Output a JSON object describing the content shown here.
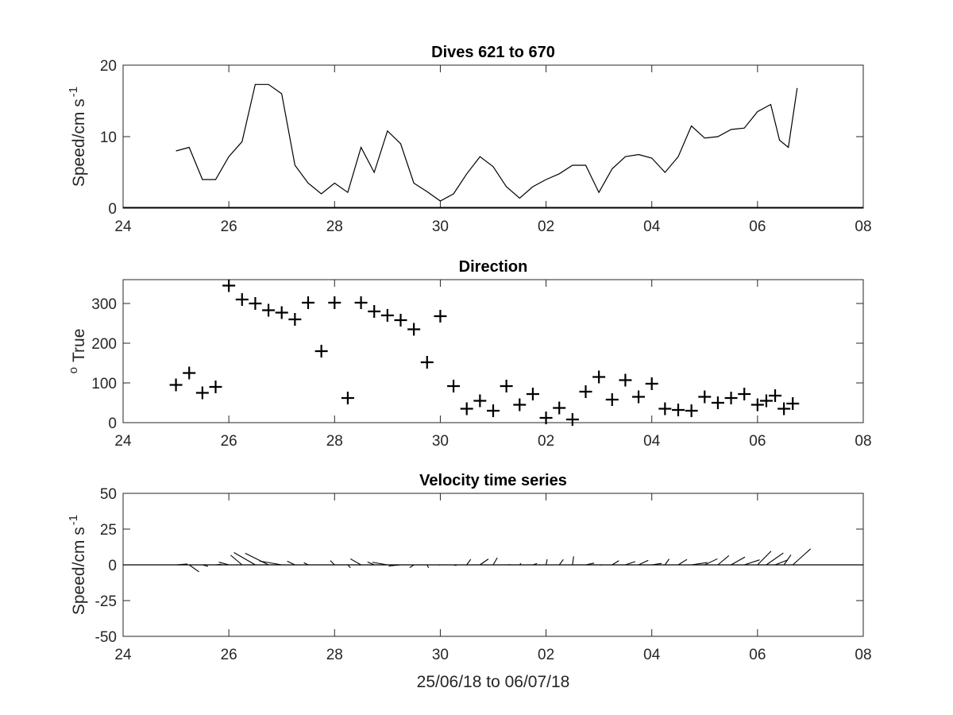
{
  "chart_data": [
    {
      "type": "line",
      "title": "Dives 621 to 670",
      "ylabel": "Speed/cm s",
      "ylabel_sup": "-1",
      "xlabel": "",
      "xlim": [
        "2018-06-24",
        "2018-07-08"
      ],
      "ylim": [
        0,
        20
      ],
      "xticks": [
        "24",
        "26",
        "28",
        "30",
        "02",
        "04",
        "06",
        "08"
      ],
      "yticks": [
        "0",
        "10",
        "20"
      ],
      "grid": false,
      "series": [
        {
          "color": "#000000",
          "x": [
            "2018-06-25T00:00",
            "2018-06-25T06:00",
            "2018-06-25T12:00",
            "2018-06-25T18:00",
            "2018-06-26T00:00",
            "2018-06-26T06:00",
            "2018-06-26T12:00",
            "2018-06-26T18:00",
            "2018-06-27T00:00",
            "2018-06-27T06:00",
            "2018-06-27T12:00",
            "2018-06-27T18:00",
            "2018-06-28T00:00",
            "2018-06-28T06:00",
            "2018-06-28T12:00",
            "2018-06-28T18:00",
            "2018-06-29T00:00",
            "2018-06-29T06:00",
            "2018-06-29T12:00",
            "2018-06-29T18:00",
            "2018-06-30T00:00",
            "2018-06-30T06:00",
            "2018-06-30T12:00",
            "2018-06-30T18:00",
            "2018-07-01T00:00",
            "2018-07-01T06:00",
            "2018-07-01T12:00",
            "2018-07-01T18:00",
            "2018-07-02T00:00",
            "2018-07-02T06:00",
            "2018-07-02T12:00",
            "2018-07-02T18:00",
            "2018-07-03T00:00",
            "2018-07-03T06:00",
            "2018-07-03T12:00",
            "2018-07-03T18:00",
            "2018-07-04T00:00",
            "2018-07-04T06:00",
            "2018-07-04T12:00",
            "2018-07-04T18:00",
            "2018-07-05T00:00",
            "2018-07-05T06:00",
            "2018-07-05T12:00",
            "2018-07-05T18:00",
            "2018-07-06T00:00",
            "2018-07-06T06:00",
            "2018-07-06T10:00",
            "2018-07-06T14:00",
            "2018-07-06T18:00"
          ],
          "values": [
            8,
            8.5,
            4,
            4,
            7.2,
            9.3,
            17.3,
            17.3,
            16,
            6,
            3.5,
            2,
            3.5,
            2.2,
            8.5,
            5,
            10.8,
            9,
            3.5,
            2.3,
            1,
            2,
            4.8,
            7.2,
            5.8,
            3,
            1.4,
            3,
            4,
            4.8,
            6,
            6,
            2.2,
            5.5,
            7.2,
            7.5,
            7,
            5,
            7.2,
            11.5,
            9.8,
            10,
            11,
            11.2,
            13.5,
            14.5,
            9.5,
            8.5,
            16.8
          ]
        }
      ]
    },
    {
      "type": "scatter",
      "title": "Direction",
      "ylabel": "True",
      "ylabel_sup": "o",
      "xlabel": "",
      "marker": "+",
      "xlim": [
        "2018-06-24",
        "2018-07-08"
      ],
      "ylim": [
        0,
        360
      ],
      "xticks": [
        "24",
        "26",
        "28",
        "30",
        "02",
        "04",
        "06",
        "08"
      ],
      "yticks": [
        "0",
        "100",
        "200",
        "300"
      ],
      "grid": false,
      "series": [
        {
          "color": "#000000",
          "x": [
            "2018-06-25T00:00",
            "2018-06-25T06:00",
            "2018-06-25T12:00",
            "2018-06-25T18:00",
            "2018-06-26T00:00",
            "2018-06-26T06:00",
            "2018-06-26T12:00",
            "2018-06-26T18:00",
            "2018-06-27T00:00",
            "2018-06-27T06:00",
            "2018-06-27T12:00",
            "2018-06-27T18:00",
            "2018-06-28T00:00",
            "2018-06-28T06:00",
            "2018-06-28T12:00",
            "2018-06-28T18:00",
            "2018-06-29T00:00",
            "2018-06-29T06:00",
            "2018-06-29T12:00",
            "2018-06-29T18:00",
            "2018-06-30T00:00",
            "2018-06-30T06:00",
            "2018-06-30T12:00",
            "2018-06-30T18:00",
            "2018-07-01T00:00",
            "2018-07-01T06:00",
            "2018-07-01T12:00",
            "2018-07-01T18:00",
            "2018-07-02T00:00",
            "2018-07-02T06:00",
            "2018-07-02T12:00",
            "2018-07-02T18:00",
            "2018-07-03T00:00",
            "2018-07-03T06:00",
            "2018-07-03T12:00",
            "2018-07-03T18:00",
            "2018-07-04T00:00",
            "2018-07-04T06:00",
            "2018-07-04T12:00",
            "2018-07-04T18:00",
            "2018-07-05T00:00",
            "2018-07-05T06:00",
            "2018-07-05T12:00",
            "2018-07-05T18:00",
            "2018-07-06T00:00",
            "2018-07-06T04:00",
            "2018-07-06T08:00",
            "2018-07-06T12:00",
            "2018-07-06T16:00"
          ],
          "values": [
            95,
            125,
            75,
            90,
            345,
            310,
            300,
            283,
            277,
            260,
            302,
            180,
            302,
            62,
            302,
            280,
            270,
            258,
            235,
            152,
            268,
            92,
            35,
            55,
            30,
            92,
            45,
            72,
            12,
            37,
            8,
            78,
            115,
            58,
            107,
            65,
            98,
            35,
            32,
            30,
            65,
            50,
            62,
            72,
            45,
            55,
            68,
            35,
            48
          ]
        }
      ]
    },
    {
      "type": "quiver",
      "title": "Velocity time series",
      "ylabel": "Speed/cm s",
      "ylabel_sup": "-1",
      "xlabel": "25/06/18 to 06/07/18",
      "xlim": [
        "2018-06-24",
        "2018-07-08"
      ],
      "ylim": [
        -50,
        50
      ],
      "xticks": [
        "24",
        "26",
        "28",
        "30",
        "02",
        "04",
        "06",
        "08"
      ],
      "yticks": [
        "50",
        "25",
        "0",
        "-25",
        "-50"
      ],
      "baseline": 0,
      "grid": false,
      "note_values": "each stick starts at its time on the zero line; u is the east component, v the north component, in cm/s",
      "series": [
        {
          "color": "#000000",
          "x": [
            "2018-06-25T00:00",
            "2018-06-25T06:00",
            "2018-06-25T12:00",
            "2018-06-25T18:00",
            "2018-06-26T00:00",
            "2018-06-26T06:00",
            "2018-06-26T12:00",
            "2018-06-26T18:00",
            "2018-06-27T00:00",
            "2018-06-27T06:00",
            "2018-06-27T12:00",
            "2018-06-27T18:00",
            "2018-06-28T00:00",
            "2018-06-28T06:00",
            "2018-06-28T12:00",
            "2018-06-28T18:00",
            "2018-06-29T00:00",
            "2018-06-29T06:00",
            "2018-06-29T12:00",
            "2018-06-29T18:00",
            "2018-06-30T00:00",
            "2018-06-30T06:00",
            "2018-06-30T12:00",
            "2018-06-30T18:00",
            "2018-07-01T00:00",
            "2018-07-01T06:00",
            "2018-07-01T12:00",
            "2018-07-01T18:00",
            "2018-07-02T00:00",
            "2018-07-02T06:00",
            "2018-07-02T12:00",
            "2018-07-02T18:00",
            "2018-07-03T00:00",
            "2018-07-03T06:00",
            "2018-07-03T12:00",
            "2018-07-03T18:00",
            "2018-07-04T00:00",
            "2018-07-04T06:00",
            "2018-07-04T12:00",
            "2018-07-04T18:00",
            "2018-07-05T00:00",
            "2018-07-05T06:00",
            "2018-07-05T12:00",
            "2018-07-05T18:00",
            "2018-07-06T00:00",
            "2018-07-06T04:00",
            "2018-07-06T08:00",
            "2018-07-06T12:00",
            "2018-07-06T16:00"
          ],
          "u": [
            8,
            6.9,
            3.9,
            4,
            -7,
            -8,
            -14.9,
            -16.3,
            -15.6,
            -5.4,
            -3,
            0,
            -3,
            1.9,
            -7.4,
            -4.7,
            -10.6,
            -8.4,
            -2.9,
            1,
            -0.9,
            2,
            2.8,
            5.9,
            2.9,
            3,
            1,
            2.9,
            0.8,
            2.9,
            0.8,
            5.9,
            2,
            4.7,
            6.9,
            6.8,
            6.9,
            2.9,
            6.1,
            11.2,
            8.9,
            7.7,
            9.7,
            10.7,
            9.5,
            11.9,
            8.9,
            4.9,
            12.5
          ],
          "v": [
            0.6,
            -4.9,
            -1,
            0.4,
            1.9,
            6.8,
            8.6,
            8.1,
            2.7,
            2.6,
            1.5,
            0,
            3,
            -2,
            4.2,
            2,
            1.8,
            -0.8,
            -2,
            -2.1,
            -0.2,
            -0.5,
            3.9,
            4.1,
            5,
            0.1,
            1,
            0.9,
            3.9,
            3.8,
            5.9,
            1.2,
            -0.1,
            2.9,
            2.3,
            3.2,
            1,
            4.1,
            3.8,
            1.6,
            4.2,
            6.4,
            5.5,
            3.5,
            9.6,
            8.3,
            3.5,
            7,
            11.2
          ]
        }
      ]
    }
  ]
}
